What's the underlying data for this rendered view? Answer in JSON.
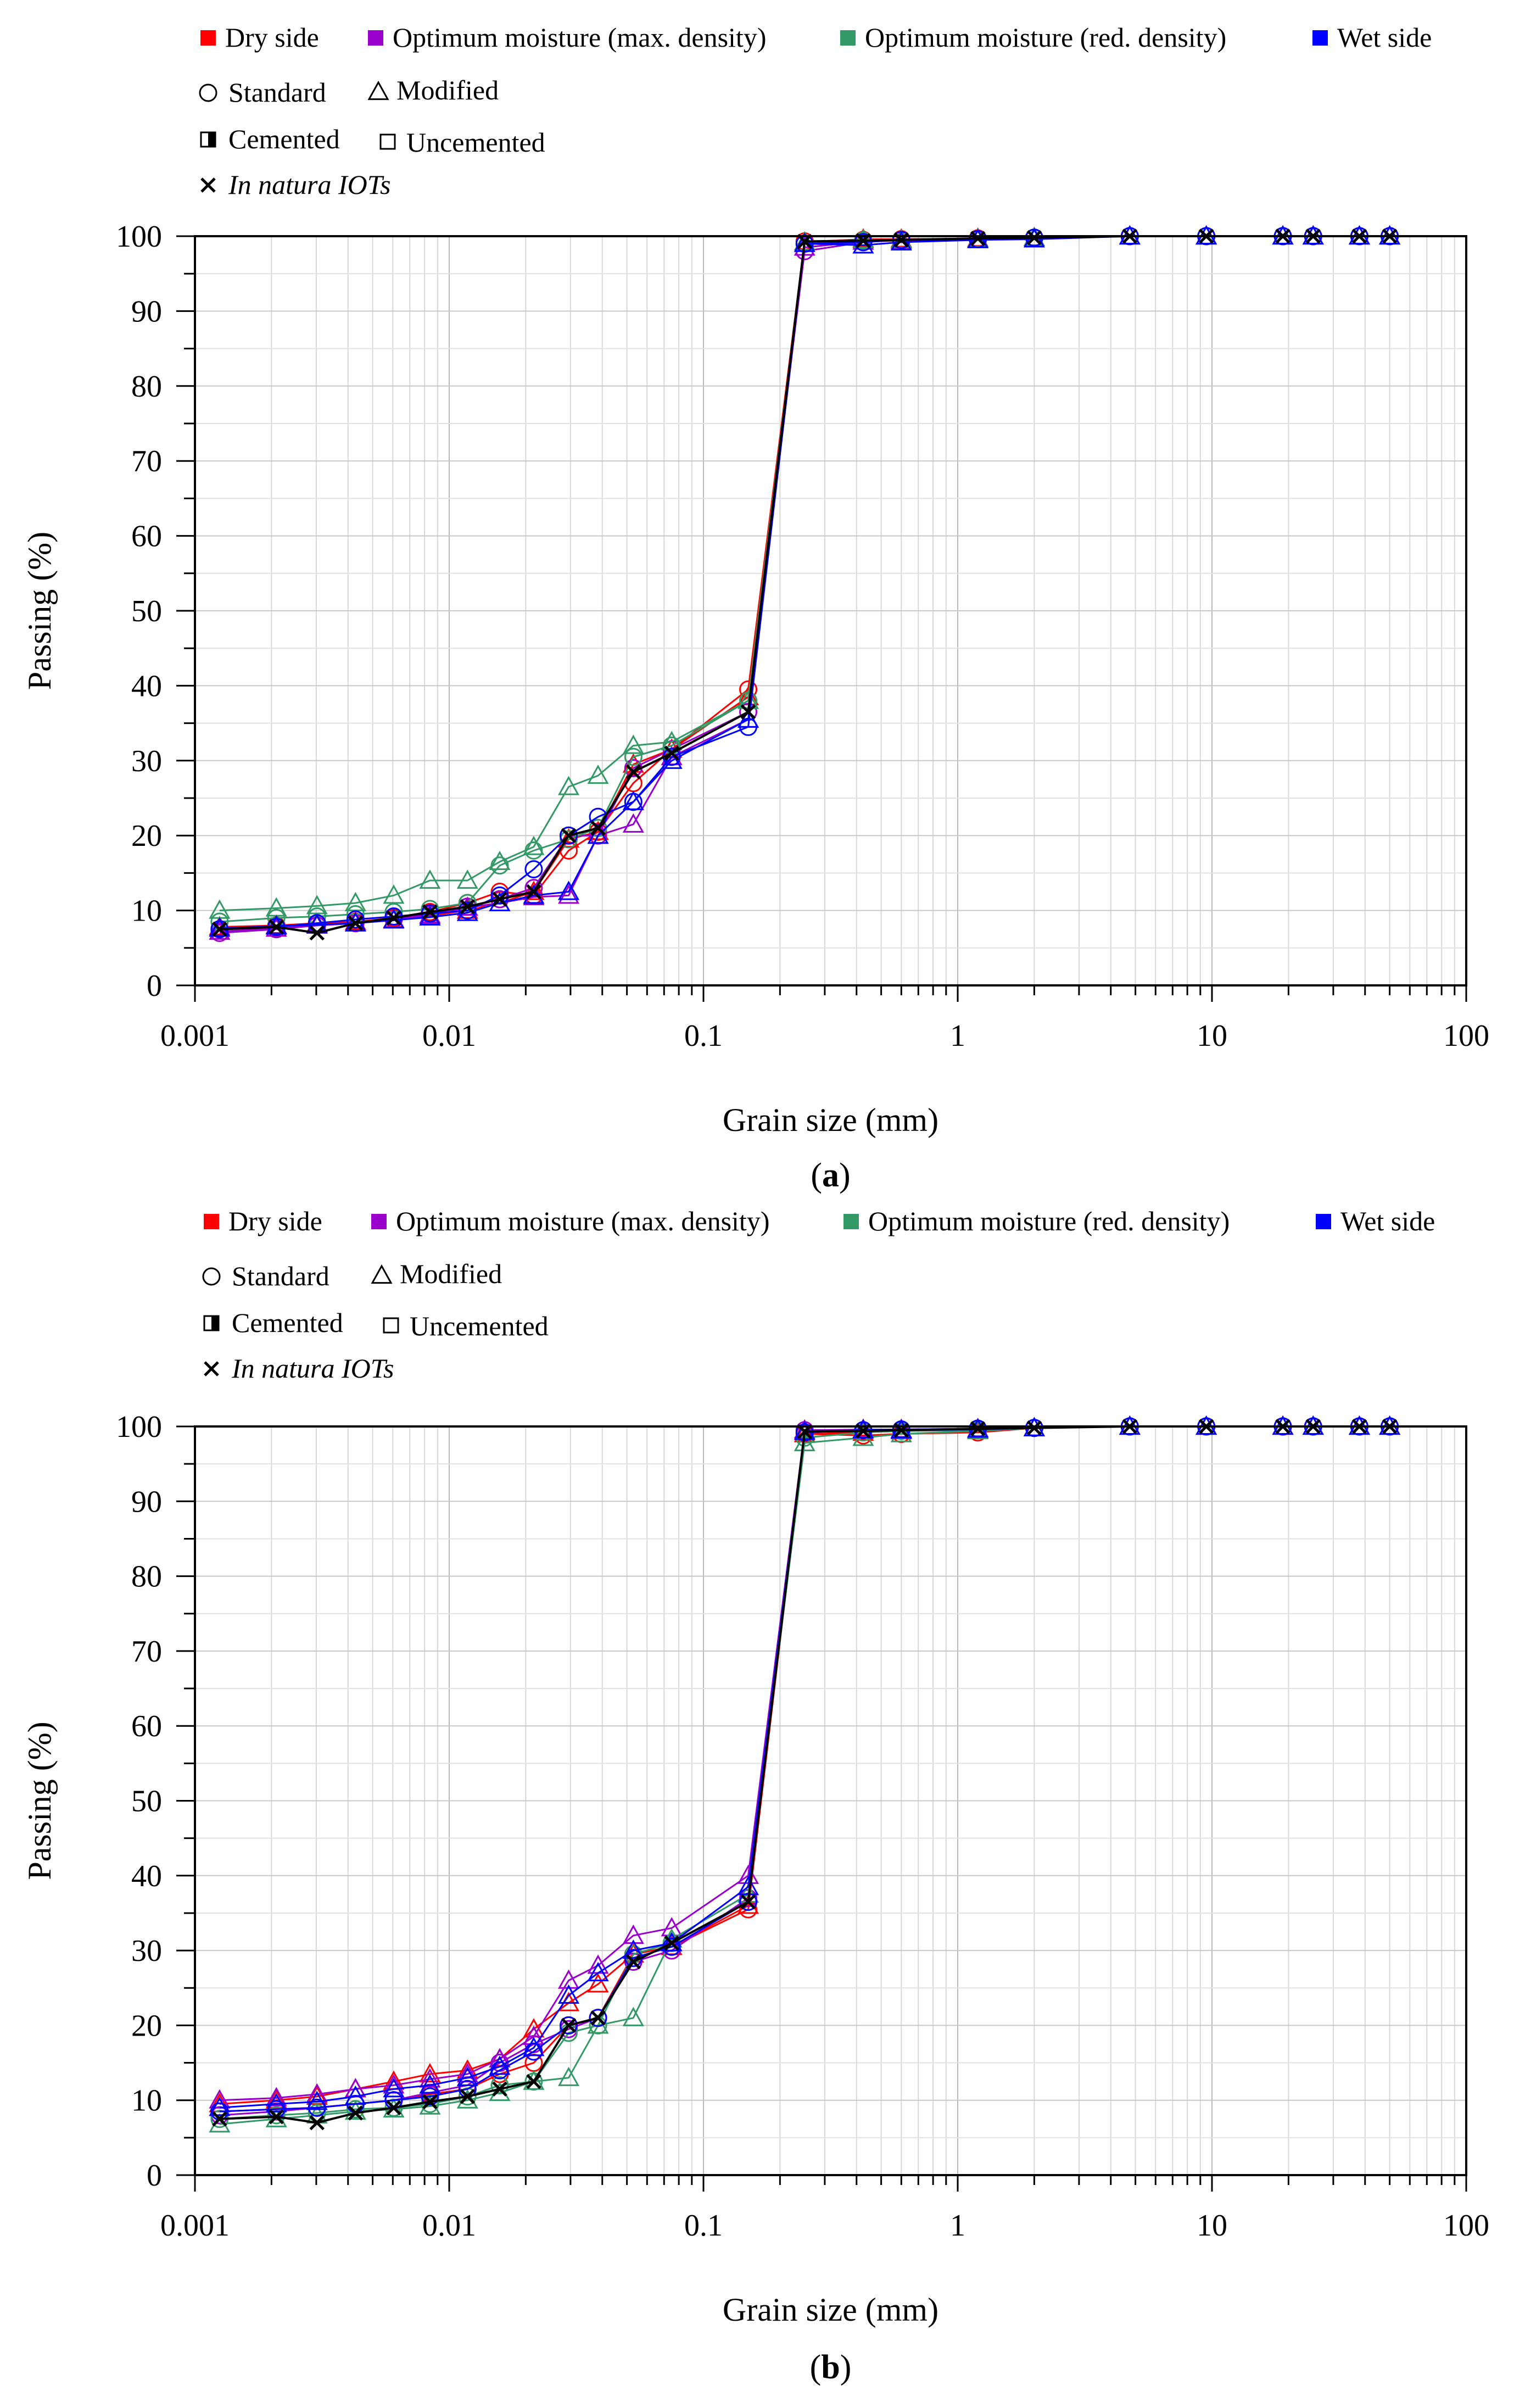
{
  "legend": {
    "series": [
      {
        "key": "dry",
        "label": "Dry side",
        "color": "#ff0000"
      },
      {
        "key": "opt_max",
        "label": "Optimum moisture (max. density)",
        "color": "#9900cc"
      },
      {
        "key": "opt_red",
        "label": "Optimum moisture (red. density)",
        "color": "#339966"
      },
      {
        "key": "wet",
        "label": "Wet side",
        "color": "#0000ff"
      }
    ],
    "compaction": [
      {
        "key": "standard",
        "label": "Standard",
        "symbol": "circle"
      },
      {
        "key": "modified",
        "label": "Modified",
        "symbol": "triangle"
      }
    ],
    "cementation": [
      {
        "key": "cemented",
        "label": "Cemented",
        "symbol": "half-filled-square"
      },
      {
        "key": "uncemented",
        "label": "Uncemented",
        "symbol": "open-square"
      }
    ],
    "natura": {
      "label": "In natura IOTs",
      "symbol": "cross",
      "color": "#000000"
    }
  },
  "chart_data": [
    {
      "panel_label": "a",
      "type": "line",
      "xscale": "log",
      "xlim": [
        0.001,
        100
      ],
      "ylim": [
        0,
        100
      ],
      "xticks": [
        "0.001",
        "0.01",
        "0.1",
        "1",
        "10",
        "100"
      ],
      "yticks": [
        "0",
        "10",
        "20",
        "30",
        "40",
        "50",
        "60",
        "70",
        "80",
        "90",
        "100"
      ],
      "xlabel": "Grain size (mm)",
      "ylabel": "Passing (%)",
      "grid": true,
      "x": [
        0.00125,
        0.00209,
        0.00302,
        0.00428,
        0.00605,
        0.0084,
        0.0118,
        0.0158,
        0.0215,
        0.0295,
        0.0385,
        0.053,
        0.075,
        0.15,
        0.25,
        0.425,
        0.6,
        1.2,
        2.0,
        4.75,
        9.5,
        19,
        25,
        38,
        50
      ],
      "series": [
        {
          "name": "Dry side / Standard",
          "color": "#ff0000",
          "marker": "circle",
          "values": [
            7.5,
            8.0,
            8.3,
            8.5,
            9.0,
            9.8,
            11.0,
            12.5,
            12.0,
            18.0,
            20.5,
            27.0,
            31.5,
            39.5,
            99.3,
            99.5,
            99.6,
            99.7,
            99.8,
            100,
            100,
            100,
            100,
            100,
            100
          ]
        },
        {
          "name": "Dry side / Modified",
          "color": "#ff0000",
          "marker": "triangle",
          "values": [
            7.8,
            8.0,
            8.2,
            8.5,
            8.8,
            9.3,
            10.0,
            11.0,
            12.5,
            19.5,
            20.5,
            29.5,
            31.5,
            38.5,
            99.2,
            99.6,
            99.6,
            99.7,
            99.8,
            100,
            100,
            100,
            100,
            100,
            100
          ]
        },
        {
          "name": "Optimum moisture (max. density) / Standard",
          "color": "#9900cc",
          "marker": "circle",
          "values": [
            7.0,
            7.5,
            8.0,
            8.3,
            8.8,
            9.5,
            10.5,
            11.5,
            13.0,
            20.0,
            20.0,
            29.0,
            31.5,
            36.5,
            98.0,
            99.2,
            99.5,
            99.6,
            99.8,
            100,
            100,
            100,
            100,
            100,
            100
          ]
        },
        {
          "name": "Optimum moisture (max. density) / Modified",
          "color": "#9900cc",
          "marker": "triangle",
          "values": [
            7.2,
            7.6,
            8.0,
            8.3,
            8.7,
            9.4,
            10.4,
            11.0,
            11.8,
            12.0,
            20.0,
            21.5,
            30.5,
            35.5,
            98.5,
            99.3,
            99.4,
            99.6,
            99.8,
            100,
            100,
            100,
            100,
            100,
            100
          ]
        },
        {
          "name": "Optimum moisture (red. density) / Standard",
          "color": "#339966",
          "marker": "circle",
          "values": [
            8.5,
            9.0,
            9.2,
            9.5,
            9.8,
            10.2,
            11.0,
            16.0,
            18.0,
            19.5,
            21.0,
            30.5,
            32.0,
            38.0,
            99.0,
            99.4,
            99.5,
            99.6,
            99.8,
            100,
            100,
            100,
            100,
            100,
            100
          ]
        },
        {
          "name": "Optimum moisture (red. density) / Modified",
          "color": "#339966",
          "marker": "triangle",
          "values": [
            10.0,
            10.3,
            10.6,
            11.0,
            12.0,
            14.0,
            14.0,
            16.5,
            18.5,
            26.5,
            28.0,
            32.0,
            32.5,
            38.0,
            99.2,
            99.5,
            99.5,
            99.6,
            99.8,
            100,
            100,
            100,
            100,
            100,
            100
          ]
        },
        {
          "name": "Wet side / Standard",
          "color": "#0000ff",
          "marker": "circle",
          "values": [
            7.5,
            7.8,
            8.3,
            8.8,
            9.2,
            9.6,
            10.0,
            12.0,
            15.5,
            20.0,
            22.5,
            24.5,
            30.5,
            34.5,
            99.0,
            99.2,
            99.5,
            99.6,
            99.8,
            100,
            100,
            100,
            100,
            100,
            100
          ]
        },
        {
          "name": "Wet side / Modified",
          "color": "#0000ff",
          "marker": "triangle",
          "values": [
            7.6,
            7.9,
            8.1,
            8.3,
            8.7,
            9.1,
            9.7,
            11.0,
            12.0,
            12.5,
            20.0,
            24.5,
            30.0,
            35.5,
            99.0,
            98.8,
            99.2,
            99.5,
            99.6,
            100,
            100,
            100,
            100,
            100,
            100
          ]
        },
        {
          "name": "In natura IOTs",
          "color": "#000000",
          "marker": "cross",
          "values": [
            7.5,
            7.8,
            7.0,
            8.3,
            9.0,
            9.8,
            10.5,
            11.5,
            12.5,
            20.0,
            21.0,
            28.5,
            31.0,
            36.5,
            99.3,
            99.4,
            99.5,
            99.7,
            99.8,
            100,
            100,
            100,
            100,
            100,
            100
          ]
        }
      ]
    },
    {
      "panel_label": "b",
      "type": "line",
      "xscale": "log",
      "xlim": [
        0.001,
        100
      ],
      "ylim": [
        0,
        100
      ],
      "xticks": [
        "0.001",
        "0.01",
        "0.1",
        "1",
        "10",
        "100"
      ],
      "yticks": [
        "0",
        "10",
        "20",
        "30",
        "40",
        "50",
        "60",
        "70",
        "80",
        "90",
        "100"
      ],
      "xlabel": "Grain size (mm)",
      "ylabel": "Passing (%)",
      "grid": true,
      "x": [
        0.00125,
        0.00209,
        0.00302,
        0.00428,
        0.00605,
        0.0084,
        0.0118,
        0.0158,
        0.0215,
        0.0295,
        0.0385,
        0.053,
        0.075,
        0.15,
        0.25,
        0.425,
        0.6,
        1.2,
        2.0,
        4.75,
        9.5,
        19,
        25,
        38,
        50
      ],
      "series": [
        {
          "name": "Dry side / Standard",
          "color": "#ff0000",
          "marker": "circle",
          "values": [
            8.5,
            8.8,
            9.0,
            9.5,
            10.0,
            10.8,
            11.5,
            13.5,
            15.0,
            20.0,
            21.0,
            29.5,
            30.5,
            35.5,
            99.0,
            98.8,
            99.0,
            99.2,
            99.8,
            100,
            100,
            100,
            100,
            100,
            100
          ]
        },
        {
          "name": "Dry side / Modified",
          "color": "#ff0000",
          "marker": "triangle",
          "values": [
            9.5,
            10.0,
            10.5,
            11.5,
            12.5,
            13.5,
            14.0,
            15.5,
            19.5,
            23.0,
            25.5,
            29.5,
            30.5,
            36.0,
            99.0,
            99.2,
            99.4,
            99.5,
            99.8,
            100,
            100,
            100,
            100,
            100,
            100
          ]
        },
        {
          "name": "Optimum moisture (max. density) / Standard",
          "color": "#9900cc",
          "marker": "circle",
          "values": [
            8.0,
            8.5,
            9.0,
            9.5,
            10.0,
            11.0,
            12.0,
            15.0,
            17.5,
            19.5,
            21.0,
            28.5,
            30.0,
            37.0,
            99.5,
            99.5,
            99.5,
            99.6,
            99.8,
            100,
            100,
            100,
            100,
            100,
            100
          ]
        },
        {
          "name": "Optimum moisture (max. density) / Modified",
          "color": "#9900cc",
          "marker": "triangle",
          "values": [
            10.0,
            10.3,
            10.8,
            11.5,
            12.0,
            12.8,
            13.5,
            15.5,
            18.5,
            26.0,
            28.0,
            32.0,
            33.0,
            40.0,
            99.5,
            99.6,
            99.6,
            99.7,
            99.8,
            100,
            100,
            100,
            100,
            100,
            100
          ]
        },
        {
          "name": "Optimum moisture (red. density) / Standard",
          "color": "#339966",
          "marker": "circle",
          "values": [
            7.5,
            8.0,
            8.3,
            8.8,
            9.0,
            9.5,
            10.5,
            12.0,
            12.5,
            19.0,
            20.0,
            29.5,
            31.0,
            36.5,
            98.5,
            99.2,
            99.4,
            99.5,
            99.8,
            100,
            100,
            100,
            100,
            100,
            100
          ]
        },
        {
          "name": "Optimum moisture (red. density) / Modified",
          "color": "#339966",
          "marker": "triangle",
          "values": [
            6.8,
            7.5,
            8.0,
            8.5,
            8.8,
            9.2,
            10.0,
            11.0,
            12.5,
            13.0,
            20.0,
            21.0,
            31.5,
            37.5,
            97.8,
            98.5,
            99.0,
            99.4,
            99.8,
            100,
            100,
            100,
            100,
            100,
            100
          ]
        },
        {
          "name": "Wet side / Standard",
          "color": "#0000ff",
          "marker": "circle",
          "values": [
            8.5,
            8.8,
            9.0,
            9.5,
            10.0,
            10.5,
            11.5,
            14.0,
            16.5,
            20.0,
            21.0,
            29.0,
            30.5,
            36.5,
            99.2,
            99.5,
            99.6,
            99.7,
            99.8,
            100,
            100,
            100,
            100,
            100,
            100
          ]
        },
        {
          "name": "Wet side / Modified",
          "color": "#0000ff",
          "marker": "triangle",
          "values": [
            9.0,
            9.5,
            9.8,
            10.5,
            11.5,
            12.0,
            13.0,
            14.5,
            17.0,
            24.0,
            27.0,
            30.0,
            31.0,
            38.5,
            99.3,
            99.5,
            99.5,
            99.6,
            99.8,
            100,
            100,
            100,
            100,
            100,
            100
          ]
        },
        {
          "name": "In natura IOTs",
          "color": "#000000",
          "marker": "cross",
          "values": [
            7.5,
            7.8,
            7.0,
            8.3,
            9.0,
            9.8,
            10.5,
            11.5,
            12.5,
            20.0,
            21.0,
            28.5,
            31.0,
            36.5,
            99.3,
            99.4,
            99.5,
            99.7,
            99.8,
            100,
            100,
            100,
            100,
            100,
            100
          ]
        }
      ]
    }
  ]
}
